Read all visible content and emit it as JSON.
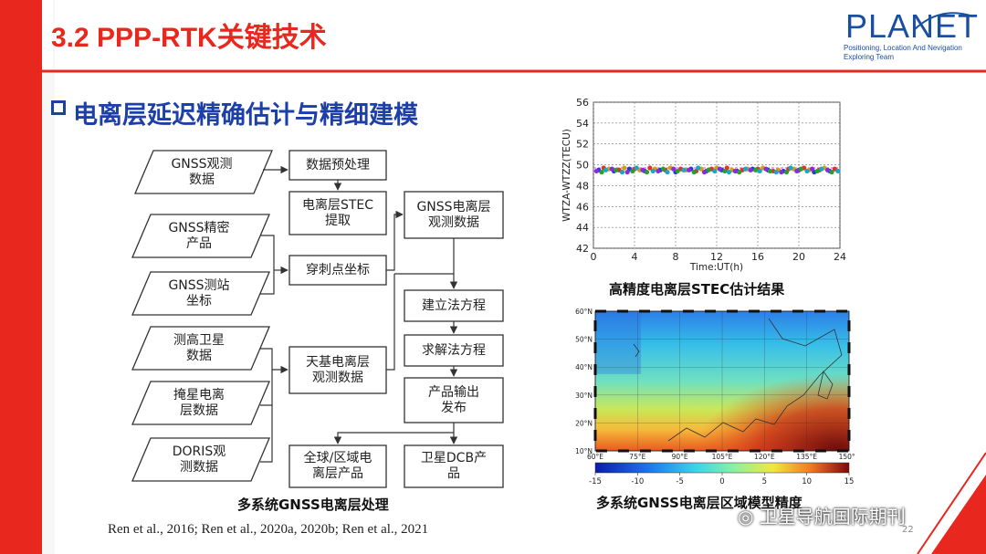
{
  "header": {
    "title": "3.2 PPP-RTK关键技术",
    "logo_text": "PLANET",
    "logo_line1": "Positioning, Location And Nevigation",
    "logo_line2": "Exploring Team"
  },
  "section_title": "电离层延迟精确估计与精细建模",
  "diagram": {
    "inputs": [
      {
        "id": "gnss-obs",
        "label": "GNSS观测\n数据"
      },
      {
        "id": "gnss-precise",
        "label": "GNSS精密\n产品"
      },
      {
        "id": "gnss-station",
        "label": "GNSS测站\n坐标"
      },
      {
        "id": "altimetry",
        "label": "测高卫星\n数据"
      },
      {
        "id": "occultation",
        "label": "掩星电离\n层数据"
      },
      {
        "id": "doris",
        "label": "DORIS观\n测数据"
      }
    ],
    "processes": [
      {
        "id": "preprocess",
        "label": "数据预处理"
      },
      {
        "id": "stec-extract",
        "label": "电离层STEC\n提取"
      },
      {
        "id": "pierce-point",
        "label": "穿刺点坐标"
      },
      {
        "id": "space-obs",
        "label": "天基电离层\n观测数据"
      },
      {
        "id": "gnss-iono-obs",
        "label": "GNSS电离层\n观测数据"
      },
      {
        "id": "build-eq",
        "label": "建立法方程"
      },
      {
        "id": "solve-eq",
        "label": "求解法方程"
      },
      {
        "id": "output",
        "label": "产品输出\n发布"
      },
      {
        "id": "global-product",
        "label": "全球/区域电\n离层产品"
      },
      {
        "id": "dcb-product",
        "label": "卫星DCB产\n品"
      }
    ],
    "caption": "多系统GNSS电离层处理"
  },
  "stec_chart": {
    "chart_data": {
      "type": "scatter",
      "xlabel": "Time:UT(h)",
      "ylabel": "WTZA-WTZZ(TECU)",
      "xlim": [
        0,
        24
      ],
      "ylim": [
        42,
        56
      ],
      "x_ticks": [
        "0",
        "4",
        "8",
        "12",
        "16",
        "20",
        "24"
      ],
      "y_ticks": [
        "42",
        "44",
        "46",
        "48",
        "50",
        "52",
        "54",
        "56"
      ],
      "reference_value": 49.7,
      "series": [
        {
          "color": "#1f3fd0",
          "x": [
            0.5,
            2,
            3.5,
            5,
            6.5,
            8,
            9.5,
            11,
            12.5,
            14,
            15.5,
            17,
            18.5,
            20,
            21.5,
            23
          ],
          "y": [
            49.5,
            49.4,
            49.6,
            49.4,
            49.5,
            49.3,
            49.6,
            49.4,
            49.5,
            49.4,
            49.6,
            49.5,
            49.4,
            49.5,
            49.3,
            49.4
          ]
        },
        {
          "color": "#e0332a",
          "x": [
            1,
            2.5,
            4,
            5.5,
            7,
            8.5,
            10,
            11.5,
            13,
            14.5,
            16,
            17.5,
            19,
            20.5,
            22,
            23.5
          ],
          "y": [
            49.7,
            49.5,
            49.6,
            49.7,
            49.5,
            49.6,
            49.4,
            49.6,
            49.7,
            49.5,
            49.6,
            49.4,
            49.6,
            49.7,
            49.5,
            49.6
          ]
        },
        {
          "color": "#2aa02a",
          "x": [
            0.8,
            2.2,
            3.8,
            5.2,
            6.8,
            8.2,
            9.8,
            11.2,
            12.8,
            14.2,
            15.8,
            17.2,
            18.8,
            20.2,
            21.8,
            23.2
          ],
          "y": [
            49.3,
            49.5,
            49.4,
            49.3,
            49.6,
            49.4,
            49.3,
            49.5,
            49.4,
            49.3,
            49.5,
            49.4,
            49.3,
            49.6,
            49.4,
            49.3
          ]
        },
        {
          "color": "#d4a010",
          "x": [
            1.5,
            3,
            4.5,
            6,
            7.5,
            9,
            10.5,
            12,
            13.5,
            15,
            16.5,
            18,
            19.5,
            21,
            22.5
          ],
          "y": [
            49.6,
            49.7,
            49.5,
            49.6,
            49.7,
            49.5,
            49.6,
            49.7,
            49.5,
            49.6,
            49.7,
            49.5,
            49.6,
            49.5,
            49.7
          ]
        },
        {
          "color": "#8a2be2",
          "x": [
            0.3,
            1.8,
            3.3,
            4.8,
            6.3,
            7.8,
            9.3,
            10.8,
            12.3,
            13.8,
            15.3,
            16.8,
            18.3,
            19.8,
            21.3,
            22.8
          ],
          "y": [
            49.4,
            49.6,
            49.3,
            49.5,
            49.4,
            49.6,
            49.5,
            49.3,
            49.6,
            49.4,
            49.5,
            49.6,
            49.3,
            49.4,
            49.6,
            49.5
          ]
        },
        {
          "color": "#17a8c8",
          "x": [
            1.2,
            2.8,
            4.2,
            5.8,
            7.2,
            8.8,
            10.2,
            11.8,
            13.2,
            14.8,
            16.2,
            17.8,
            19.2,
            20.8,
            22.2,
            23.8
          ],
          "y": [
            49.5,
            49.3,
            49.7,
            49.4,
            49.3,
            49.5,
            49.7,
            49.4,
            49.3,
            49.6,
            49.4,
            49.3,
            49.7,
            49.4,
            49.6,
            49.4
          ]
        }
      ]
    },
    "caption": "高精度电离层STEC估计结果"
  },
  "iono_map": {
    "chart_data": {
      "type": "heatmap",
      "x_ticks": [
        "60°E",
        "75°E",
        "90°E",
        "105°E",
        "120°E",
        "135°E",
        "150°E"
      ],
      "y_ticks": [
        "10°N",
        "20°N",
        "30°N",
        "40°N",
        "50°N",
        "60°N"
      ],
      "xlim": [
        60,
        150
      ],
      "ylim": [
        10,
        60
      ],
      "colorbar_ticks": [
        "-15",
        "-10",
        "-5",
        "0",
        "5",
        "10",
        "15"
      ],
      "colorbar_range": [
        -15,
        15
      ]
    },
    "caption": "多系统GNSS电离层区域模型精度"
  },
  "citation": "Ren et al., 2016; Ren et al., 2020a, 2020b; Ren et al., 2021",
  "page_number": "22",
  "watermark": "卫星导航国际期刊",
  "colors": {
    "accent_red": "#e8281e",
    "title_blue": "#1d3fa8",
    "logo_blue": "#1a4fa0"
  }
}
